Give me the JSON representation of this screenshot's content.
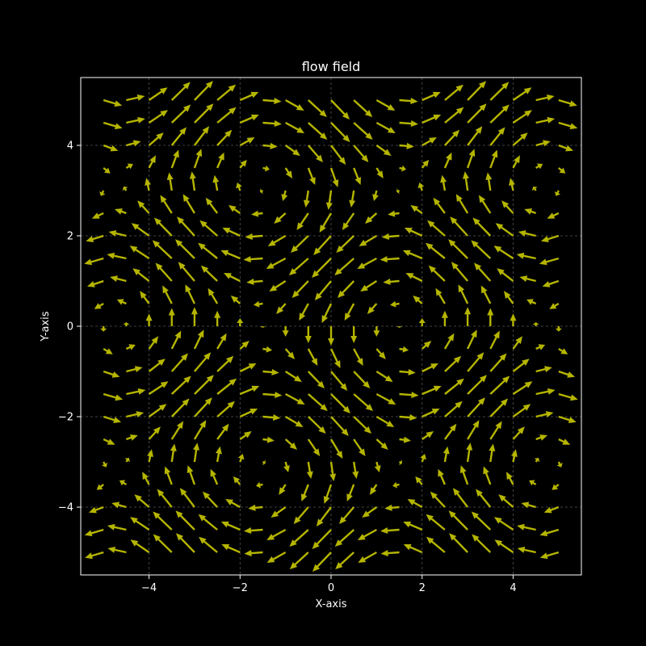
{
  "chart_data": {
    "type": "quiver",
    "title": "flow field",
    "xlabel": "X-axis",
    "ylabel": "Y-axis",
    "xlim": [
      -5.5,
      5.5
    ],
    "ylim": [
      -5.5,
      5.5
    ],
    "xticks": [
      -4,
      -2,
      0,
      2,
      4
    ],
    "yticks": [
      -4,
      -2,
      0,
      2,
      4
    ],
    "xtick_labels": [
      "−4",
      "−2",
      "0",
      "2",
      "4"
    ],
    "ytick_labels": [
      "−4",
      "−2",
      "0",
      "2",
      "4"
    ],
    "grid": true,
    "arrow_color": "#b5b500",
    "background": "#000000",
    "grid_x": {
      "start": -5,
      "stop": 5,
      "count": 21
    },
    "grid_y": {
      "start": -5,
      "stop": 5,
      "count": 21
    },
    "field": {
      "u": "-sin(y)",
      "v": "-cos(x)"
    }
  }
}
